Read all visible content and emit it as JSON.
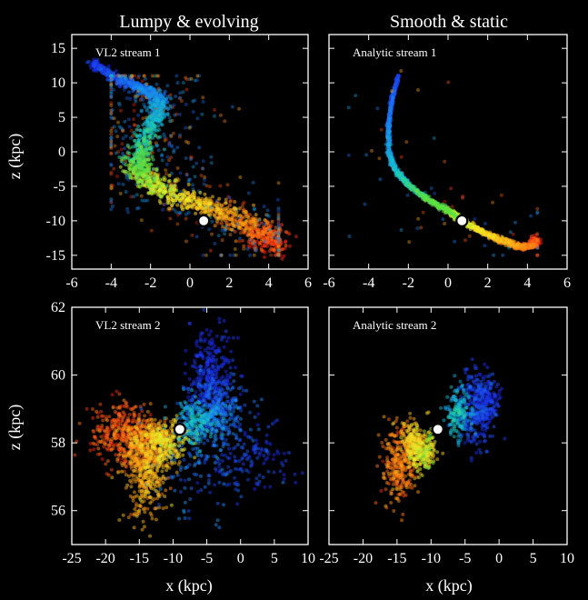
{
  "figure": {
    "column_titles": [
      "Lumpy & evolving",
      "Smooth & static"
    ],
    "row_ylabels": [
      "z (kpc)",
      "z (kpc)"
    ],
    "column_xlabel": "x (kpc)"
  },
  "chart_data": [
    {
      "type": "scatter",
      "label": "VL2 stream 1",
      "xlim": [
        -6,
        6
      ],
      "ylim": [
        -17,
        17
      ],
      "xticks": [
        -6,
        -4,
        -2,
        0,
        2,
        4,
        6
      ],
      "yticks": [
        -15,
        -10,
        -5,
        0,
        5,
        10,
        15
      ],
      "xlabel": "",
      "ylabel": "z (kpc)",
      "column_title": "Lumpy & evolving",
      "marker": {
        "x": 0.7,
        "y": -10
      },
      "spine": [
        [
          -5,
          13
        ],
        [
          -3.7,
          10.5
        ],
        [
          -2.4,
          9.3
        ],
        [
          -1.5,
          7.5
        ],
        [
          -1.7,
          5
        ],
        [
          -2.3,
          2
        ],
        [
          -2.6,
          -1
        ],
        [
          -2.5,
          -3
        ],
        [
          -1.6,
          -5.3
        ],
        [
          0,
          -7.2
        ],
        [
          1.6,
          -8.7
        ],
        [
          3,
          -10.6
        ],
        [
          4,
          -12.3
        ],
        [
          4.2,
          -13.7
        ]
      ],
      "spread": {
        "x": 0.55,
        "y": 0.9
      },
      "scatter_fraction": 0.35,
      "scatter_extent": {
        "x": [
          -4,
          4.5
        ],
        "y": [
          -15,
          11
        ]
      }
    },
    {
      "type": "scatter",
      "label": "Analytic stream 1",
      "xlim": [
        -6,
        6
      ],
      "ylim": [
        -17,
        17
      ],
      "xticks": [
        -6,
        -4,
        -2,
        0,
        2,
        4,
        6
      ],
      "yticks": [
        -15,
        -10,
        -5,
        0,
        5,
        10,
        15
      ],
      "xlabel": "",
      "ylabel": "",
      "column_title": "Smooth & static",
      "marker": {
        "x": 0.7,
        "y": -10
      },
      "spine": [
        [
          -2.5,
          11
        ],
        [
          -2.8,
          8
        ],
        [
          -3,
          4
        ],
        [
          -3,
          0
        ],
        [
          -2.7,
          -2.5
        ],
        [
          -2,
          -4.8
        ],
        [
          -1,
          -6.9
        ],
        [
          0,
          -8.5
        ],
        [
          0.7,
          -10
        ],
        [
          1.6,
          -11.4
        ],
        [
          2.6,
          -12.7
        ],
        [
          3.6,
          -13.8
        ],
        [
          4.3,
          -13.6
        ],
        [
          4.4,
          -12.6
        ]
      ],
      "spread": {
        "x": 0.12,
        "y": 0.25
      },
      "scatter_fraction": 0.04,
      "scatter_extent": {
        "x": [
          -5,
          4.5
        ],
        "y": [
          -15,
          12
        ]
      }
    },
    {
      "type": "scatter",
      "label": "VL2 stream 2",
      "xlim": [
        -25,
        10
      ],
      "ylim": [
        55,
        62
      ],
      "xticks": [
        -25,
        -20,
        -15,
        -10,
        -5,
        0,
        5,
        10
      ],
      "yticks": [
        56,
        58,
        60,
        62
      ],
      "xlabel": "x (kpc)",
      "ylabel": "z (kpc)",
      "marker": {
        "x": -9,
        "y": 58.4
      },
      "blobs": [
        {
          "x": -4.5,
          "y": 59.9,
          "sx": 1.6,
          "sy": 0.7,
          "n": 350,
          "t": 0.0
        },
        {
          "x": -3.5,
          "y": 58.9,
          "sx": 2.2,
          "sy": 0.45,
          "n": 330,
          "t": 0.15
        },
        {
          "x": -6.5,
          "y": 58.6,
          "sx": 1.6,
          "sy": 0.35,
          "n": 220,
          "t": 0.32
        },
        {
          "x": 0.5,
          "y": 57.5,
          "sx": 3.5,
          "sy": 0.55,
          "n": 160,
          "t": 0.05
        },
        {
          "x": -17.5,
          "y": 58.3,
          "sx": 2.4,
          "sy": 0.45,
          "n": 320,
          "t": 0.92
        },
        {
          "x": -14.5,
          "y": 57.9,
          "sx": 2.2,
          "sy": 0.4,
          "n": 380,
          "t": 0.82
        },
        {
          "x": -11.5,
          "y": 58.0,
          "sx": 1.8,
          "sy": 0.3,
          "n": 260,
          "t": 0.68
        },
        {
          "x": -14.0,
          "y": 56.9,
          "sx": 1.5,
          "sy": 0.6,
          "n": 300,
          "t": 0.76
        },
        {
          "x": -8.0,
          "y": 57.4,
          "sx": 3.0,
          "sy": 0.9,
          "n": 120,
          "t": 0.18
        }
      ]
    },
    {
      "type": "scatter",
      "label": "Analytic stream 2",
      "xlim": [
        -25,
        10
      ],
      "ylim": [
        55,
        62
      ],
      "xticks": [
        -25,
        -20,
        -15,
        -10,
        -5,
        0,
        5,
        10
      ],
      "yticks": [
        56,
        58,
        60,
        62
      ],
      "xlabel": "x (kpc)",
      "ylabel": "",
      "marker": {
        "x": -9,
        "y": 58.4
      },
      "blobs": [
        {
          "x": -3.5,
          "y": 59.0,
          "sx": 1.4,
          "sy": 0.55,
          "n": 320,
          "t": 0.05
        },
        {
          "x": -6.0,
          "y": 58.9,
          "sx": 1.0,
          "sy": 0.35,
          "n": 180,
          "t": 0.32
        },
        {
          "x": -1.8,
          "y": 59.4,
          "sx": 0.9,
          "sy": 0.35,
          "n": 120,
          "t": 0.0
        },
        {
          "x": -12.5,
          "y": 58.0,
          "sx": 1.0,
          "sy": 0.35,
          "n": 200,
          "t": 0.72
        },
        {
          "x": -14.5,
          "y": 57.4,
          "sx": 1.2,
          "sy": 0.55,
          "n": 300,
          "t": 0.85
        },
        {
          "x": -11.0,
          "y": 57.7,
          "sx": 1.0,
          "sy": 0.3,
          "n": 160,
          "t": 0.63
        }
      ]
    }
  ]
}
